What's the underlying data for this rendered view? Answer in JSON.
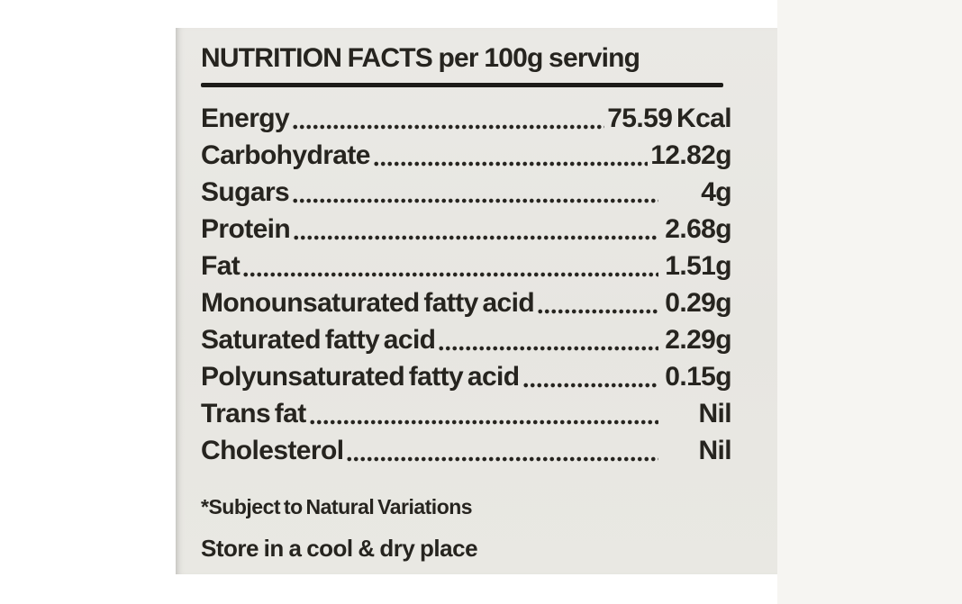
{
  "panel": {
    "title": "NUTRITION FACTS per 100g serving",
    "rows": [
      {
        "label": "Energy",
        "value": "75.59 Kcal"
      },
      {
        "label": "Carbohydrate",
        "value": "12.82g"
      },
      {
        "label": "Sugars",
        "value": "4g"
      },
      {
        "label": "Protein",
        "value": "2.68g"
      },
      {
        "label": "Fat",
        "value": "1.51g"
      },
      {
        "label": "Monounsaturated fatty acid",
        "value": "0.29g"
      },
      {
        "label": "Saturated fatty acid",
        "value": "2.29g"
      },
      {
        "label": "Polyunsaturated fatty acid",
        "value": "0.15g"
      },
      {
        "label": "Trans fat",
        "value": "Nil"
      },
      {
        "label": "Cholesterol",
        "value": "Nil"
      }
    ],
    "footnote": "*Subject to Natural Variations",
    "storage_note": "Store in a cool & dry place"
  },
  "colors": {
    "panel_background": "#e8e7e2",
    "text": "#26241f",
    "rule": "#1d1b18",
    "page_background": "#ffffff"
  }
}
